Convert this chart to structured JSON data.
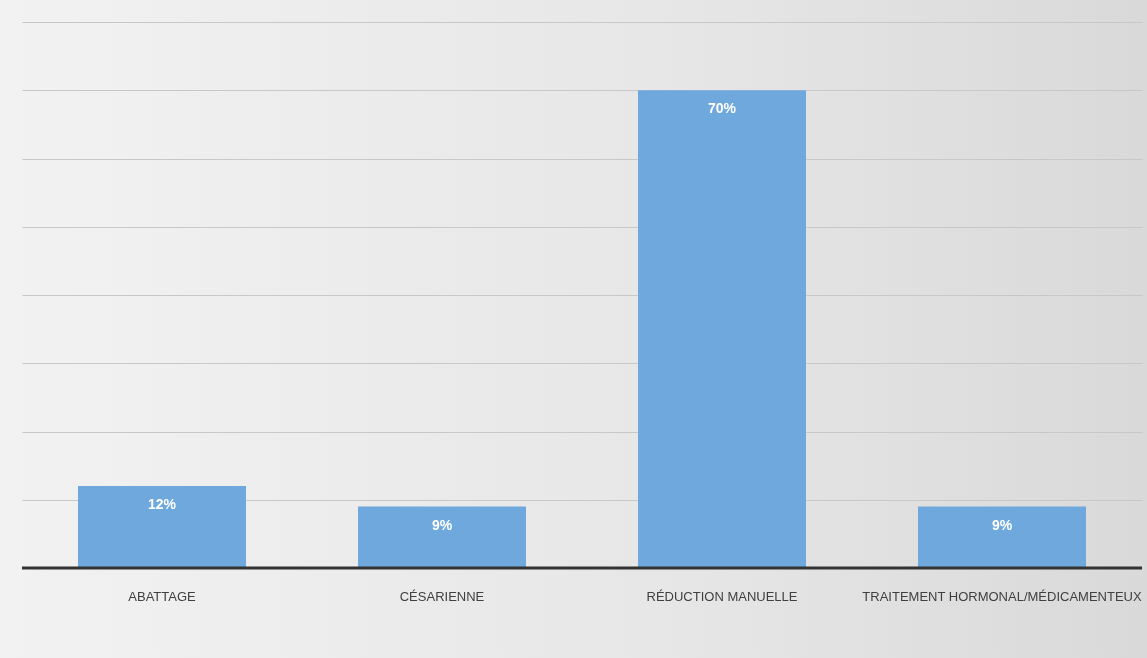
{
  "chart_data": {
    "type": "bar",
    "categories": [
      "ABATTAGE",
      "CÉSARIENNE",
      "RÉDUCTION MANUELLE",
      "TRAITEMENT HORMONAL/MÉDICAMENTEUX"
    ],
    "values": [
      12,
      9,
      70,
      9
    ],
    "value_labels": [
      "12%",
      "9%",
      "70%",
      "9%"
    ],
    "color": "#6fa8dc",
    "ylim": [
      0,
      80
    ],
    "yticks": [
      {
        "value": 0,
        "label": null
      },
      {
        "value": 10,
        "label": null
      },
      {
        "value": 20,
        "label": null
      },
      {
        "value": 30,
        "label": null
      },
      {
        "value": 40,
        "label": null
      },
      {
        "value": 50,
        "label": null
      },
      {
        "value": 60,
        "label": null
      },
      {
        "value": 70,
        "label": null
      },
      {
        "value": 80,
        "label": null
      }
    ],
    "grid": "y"
  }
}
